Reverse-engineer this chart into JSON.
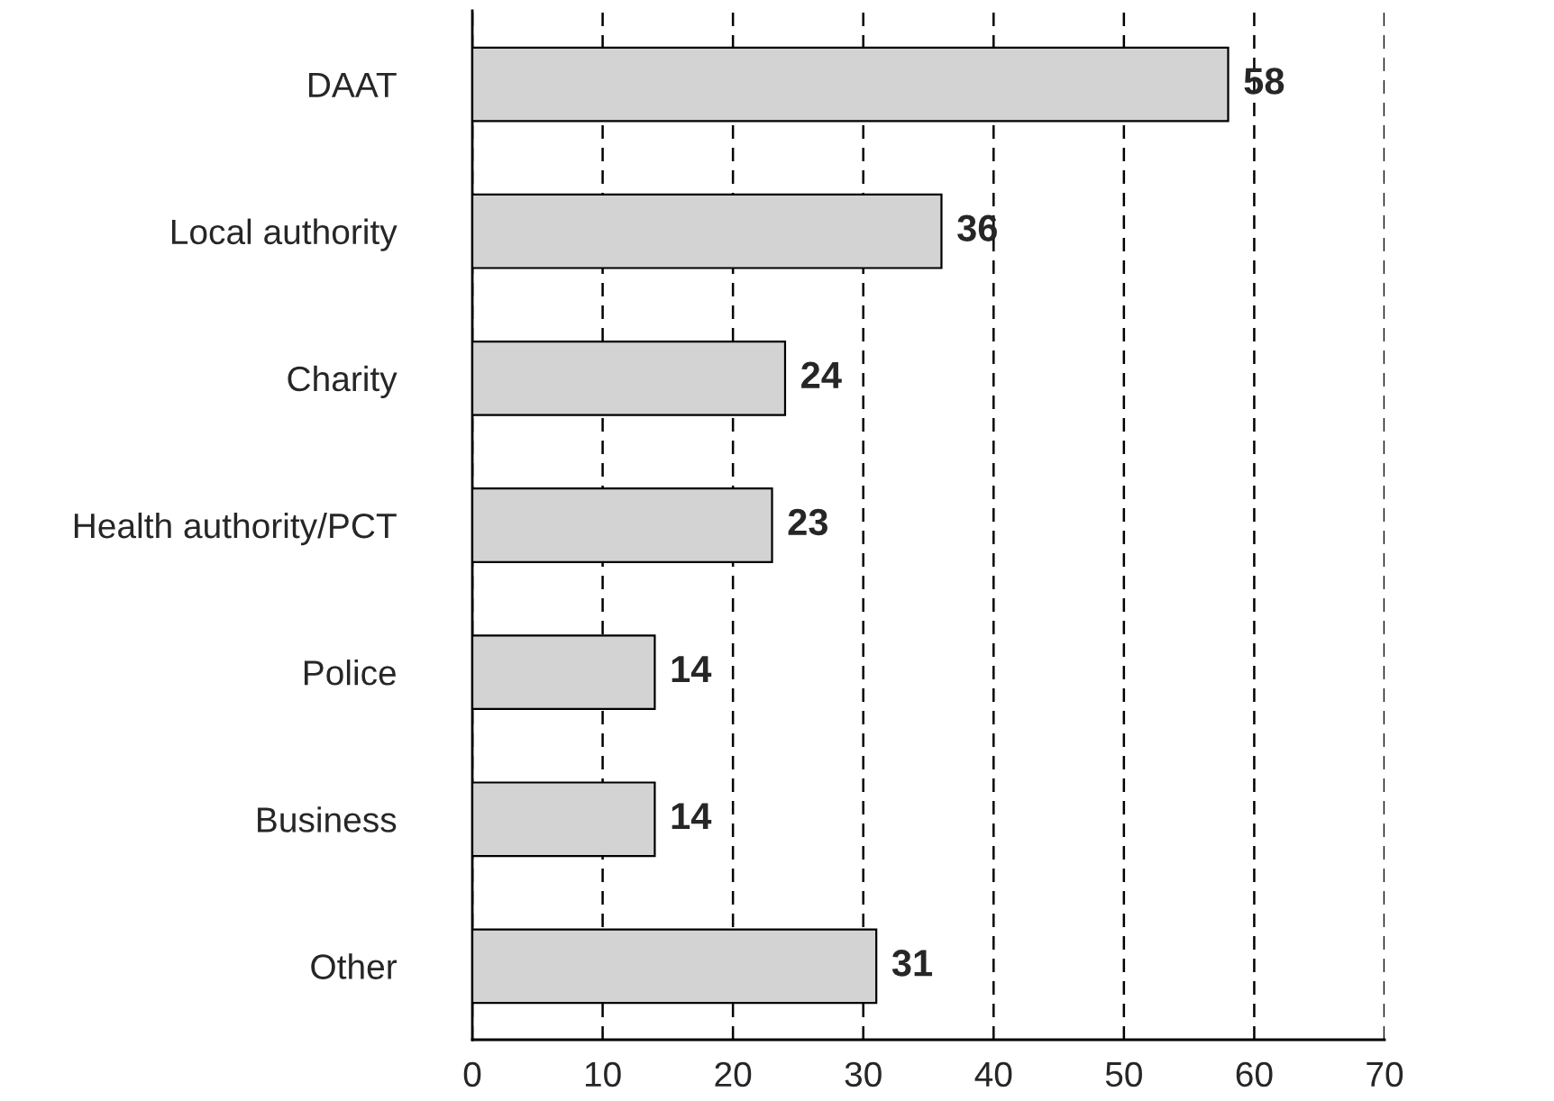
{
  "chart_data": {
    "type": "bar",
    "orientation": "horizontal",
    "categories": [
      "DAAT",
      "Local authority",
      "Charity",
      "Health authority/PCT",
      "Police",
      "Business",
      "Other"
    ],
    "values": [
      58,
      36,
      24,
      23,
      14,
      14,
      31
    ],
    "color": "#d3d3d3",
    "xlim": [
      0,
      70
    ],
    "xticks": [
      0,
      10,
      20,
      30,
      40,
      50,
      60,
      70
    ],
    "grid": "x",
    "data_labels": true
  }
}
